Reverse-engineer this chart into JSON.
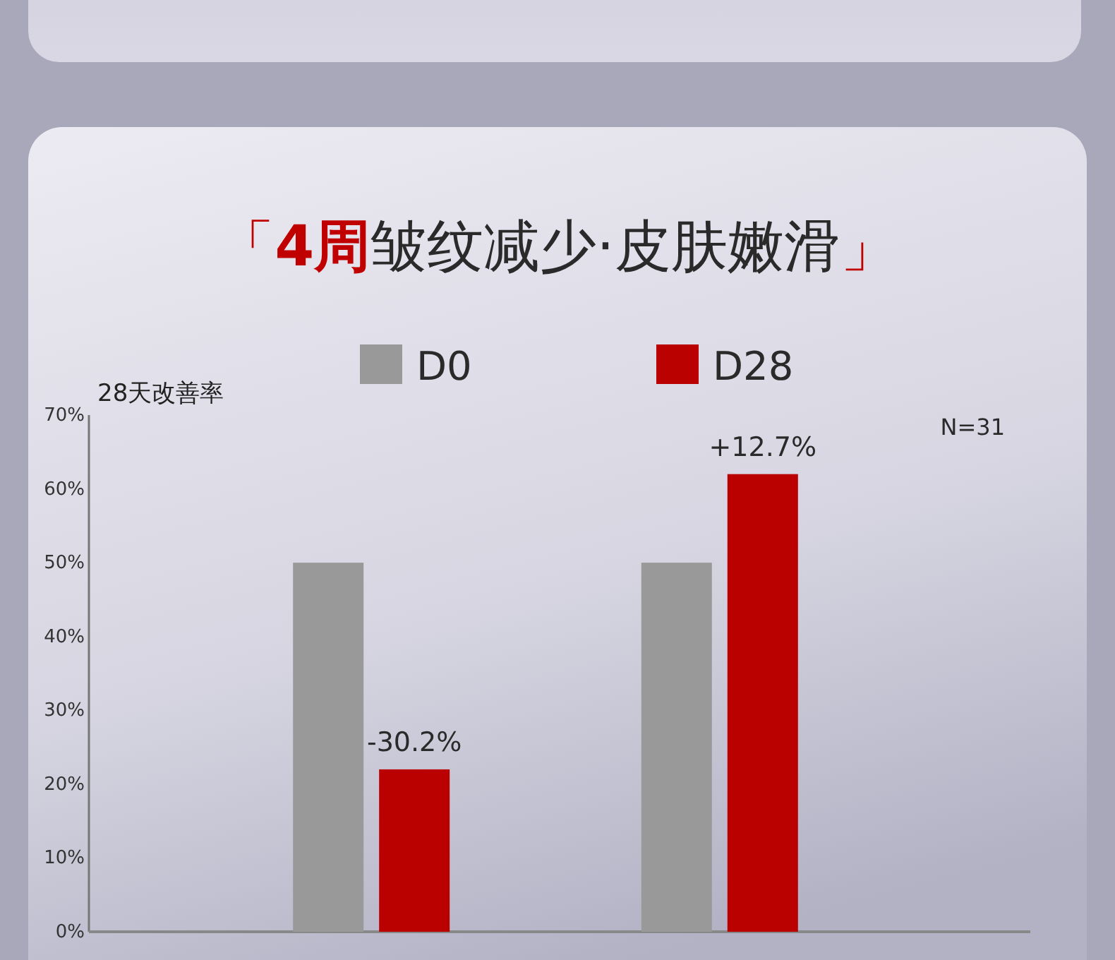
{
  "chart_data": {
    "type": "bar",
    "title": "「4周皱纹减少·皮肤嫩滑」",
    "ylabel": "28天改善率",
    "categories": [
      null,
      null
    ],
    "series": [
      {
        "name": "D0",
        "color": "#999999",
        "values": [
          50,
          50
        ]
      },
      {
        "name": "D28",
        "color": "#bb0000",
        "values": [
          22,
          62
        ]
      }
    ],
    "ylim": [
      0,
      70
    ],
    "yticks": [
      {
        "value": 0,
        "label": "0%"
      },
      {
        "value": 10,
        "label": "10%"
      },
      {
        "value": 20,
        "label": "20%"
      },
      {
        "value": 30,
        "label": "30%"
      },
      {
        "value": 40,
        "label": "40%"
      },
      {
        "value": 50,
        "label": "50%"
      },
      {
        "value": 60,
        "label": "60%"
      },
      {
        "value": 70,
        "label": "70%"
      }
    ],
    "legend": "top",
    "grid": false,
    "annotations": [
      {
        "text": "-30.2%",
        "y": 22
      },
      {
        "text": "+12.7%",
        "y": 62
      },
      "N=31"
    ]
  }
}
